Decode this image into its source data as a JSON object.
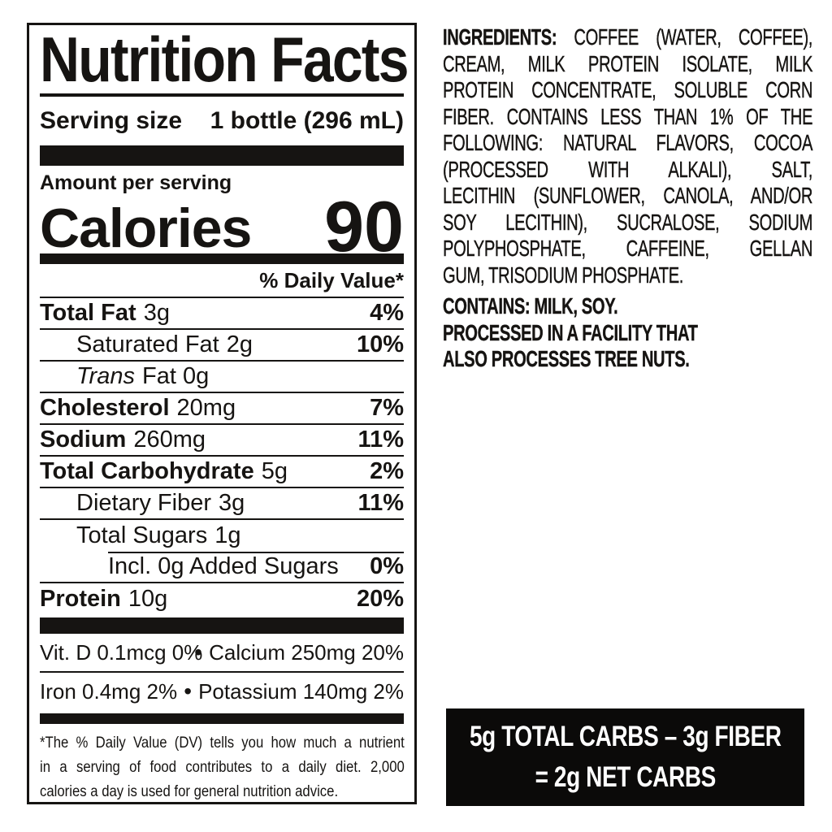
{
  "colors": {
    "ink": "#161412",
    "paper": "#ffffff",
    "callout_bg": "#0b0a09",
    "callout_fg": "#ffffff"
  },
  "nutrition_label": {
    "title": "Nutrition Facts",
    "serving_size_label": "Serving size",
    "serving_size_value": "1 bottle (296 mL)",
    "amount_per_serving": "Amount per serving",
    "calories_label": "Calories",
    "calories_value": "90",
    "daily_value_header": "% Daily Value*",
    "rows": [
      {
        "name": "Total Fat",
        "amount": "3g",
        "dv": "4%"
      },
      {
        "name": "Saturated Fat",
        "amount": "2g",
        "dv": "10%"
      },
      {
        "name": "Trans",
        "amount": "Fat 0g",
        "dv": ""
      },
      {
        "name": "Cholesterol",
        "amount": "20mg",
        "dv": "7%"
      },
      {
        "name": "Sodium",
        "amount": "260mg",
        "dv": "11%"
      },
      {
        "name": "Total Carbohydrate",
        "amount": "5g",
        "dv": "2%"
      },
      {
        "name": "Dietary Fiber",
        "amount": "3g",
        "dv": "11%"
      },
      {
        "name": "Total Sugars",
        "amount": "1g",
        "dv": ""
      },
      {
        "name": "Incl. 0g Added Sugars",
        "amount": "",
        "dv": "0%"
      },
      {
        "name": "Protein",
        "amount": "10g",
        "dv": "20%"
      }
    ],
    "vitamins_bullet": "•",
    "vitamins": [
      {
        "left": "Vit. D 0.1mcg 0%",
        "right": "Calcium 250mg 20%"
      },
      {
        "left": "Iron 0.4mg 2%",
        "right": "Potassium 140mg 2%"
      }
    ],
    "footnote_lines": [
      "*The % Daily Value (DV) tells you how much a nutrient",
      "in a serving of food contributes to a daily diet. 2,000",
      "calories a day is used for general nutrition advice."
    ]
  },
  "ingredients": {
    "heading": "INGREDIENTS:",
    "lines": [
      "COFFEE (WATER, COFFEE),",
      "CREAM, MILK PROTEIN ISOLATE, MILK",
      "PROTEIN CONCENTRATE, SOLUBLE CORN",
      "FIBER. CONTAINS LESS THAN 1% OF THE",
      "FOLLOWING: NATURAL FLAVORS, COCOA",
      "(PROCESSED WITH ALKALI), SALT,",
      "LECITHIN (SUNFLOWER, CANOLA, AND/OR",
      "SOY LECITHIN), SUCRALOSE, SODIUM",
      "POLYPHOSPHATE, CAFFEINE, GELLAN",
      "GUM, TRISODIUM PHOSPHATE."
    ],
    "contains": "CONTAINS: MILK, SOY.",
    "facility_lines": [
      "PROCESSED IN A FACILITY THAT",
      "ALSO PROCESSES TREE NUTS."
    ]
  },
  "net_carbs_box": {
    "line1": "5g TOTAL CARBS – 3g FIBER",
    "line2": "= 2g NET CARBS"
  }
}
